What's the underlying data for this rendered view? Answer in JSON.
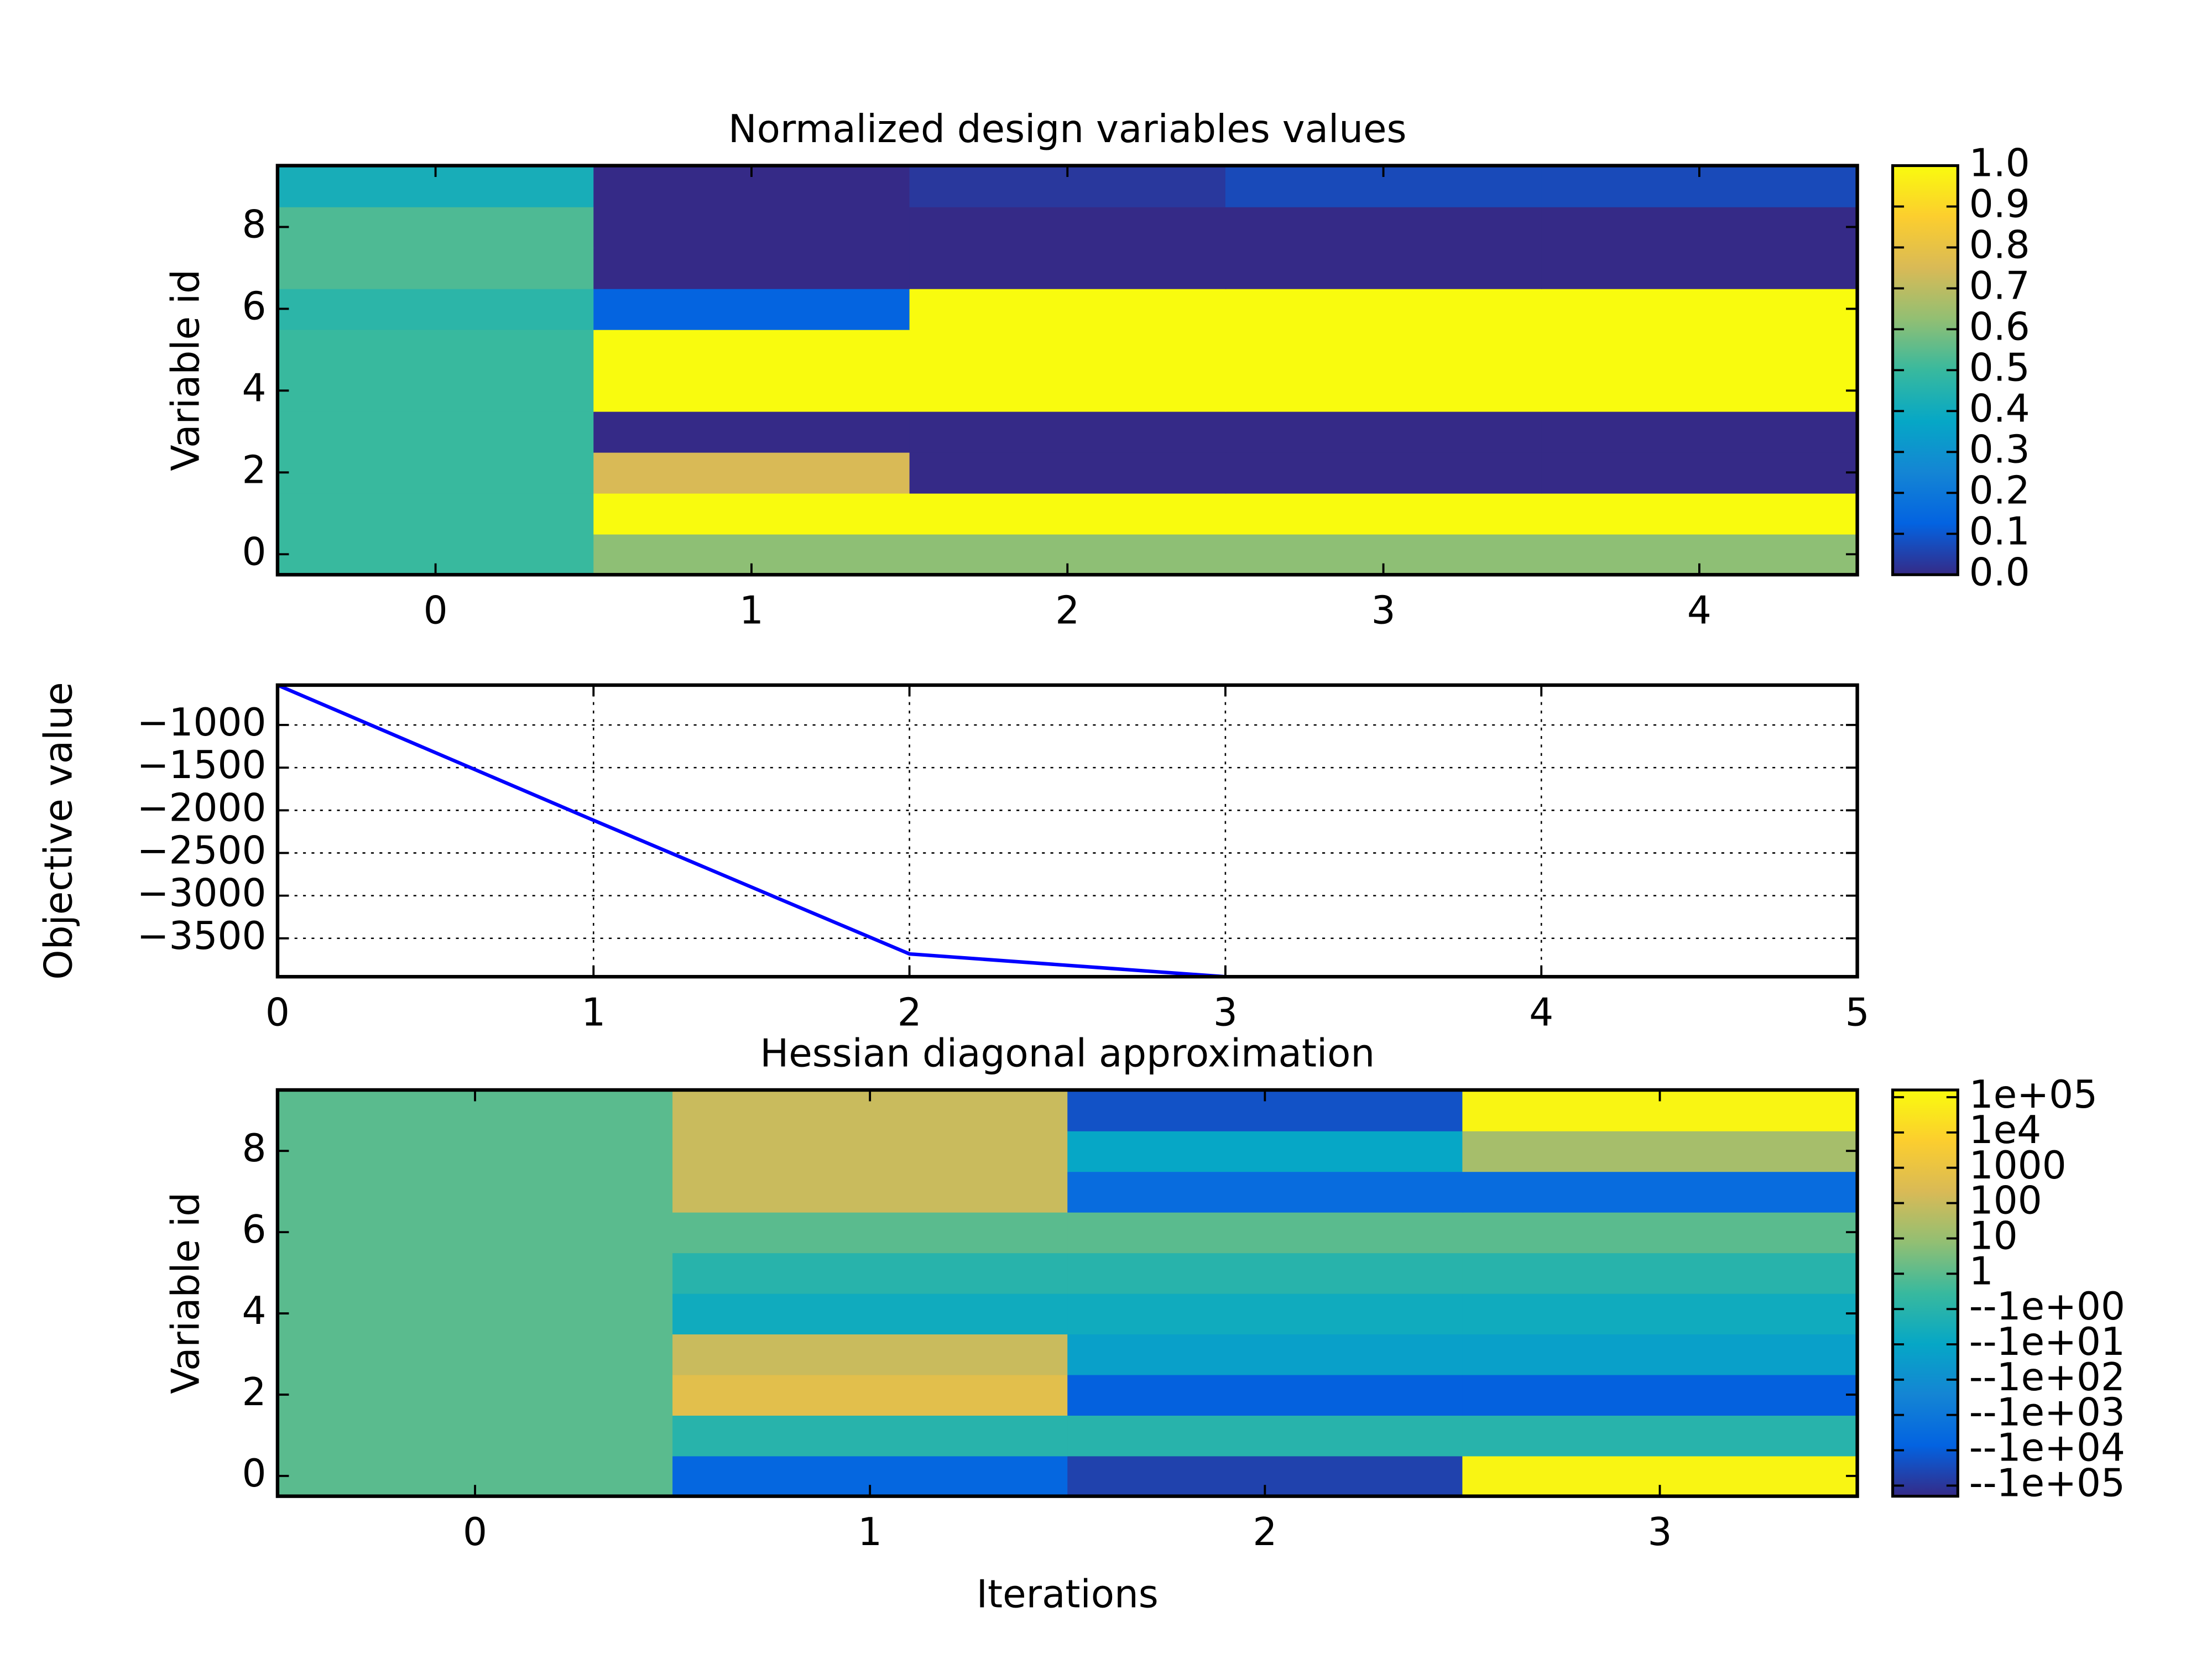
{
  "chart_data": [
    {
      "type": "heatmap",
      "title": "Normalized design variables values",
      "ylabel": "Variable id",
      "xlim": [
        -0.5,
        4.5
      ],
      "ylim": [
        -0.5,
        9.5
      ],
      "xticks": [
        0,
        1,
        2,
        3,
        4
      ],
      "yticks": [
        0,
        2,
        4,
        6,
        8
      ],
      "values": [
        [
          0.5,
          0.62,
          0.62,
          0.62,
          0.62
        ],
        [
          0.5,
          1,
          1,
          1,
          1
        ],
        [
          0.5,
          0.75,
          0,
          0,
          0
        ],
        [
          0.5,
          0,
          0,
          0,
          0
        ],
        [
          0.5,
          1,
          1,
          1,
          1
        ],
        [
          0.5,
          1,
          1,
          1,
          1
        ],
        [
          0.47,
          0.13,
          1,
          1,
          1
        ],
        [
          0.53,
          0,
          0,
          0,
          0
        ],
        [
          0.53,
          0,
          0,
          0,
          0
        ],
        [
          0.42,
          0,
          0.03,
          0.07,
          0.07
        ]
      ],
      "colormap": [
        "#352a87",
        "#0363e1",
        "#1485d4",
        "#06a7c6",
        "#38b99e",
        "#92bf73",
        "#d9ba56",
        "#fcce2e",
        "#f9fb0e"
      ],
      "colorbar": {
        "lim": [
          0,
          1
        ],
        "ticks": [
          {
            "value": 0,
            "label": "0.0"
          },
          0.1,
          0.2,
          0.3,
          0.4,
          0.5,
          0.6,
          0.7,
          0.8,
          0.9,
          {
            "value": 1,
            "label": "1.0"
          }
        ]
      }
    },
    {
      "type": "line",
      "ylabel": "Objective value",
      "x": [
        0,
        1,
        2,
        3
      ],
      "values": [
        -533,
        -2117,
        -3683,
        -3950
      ],
      "color": "#0000ff",
      "xlim": [
        0,
        5
      ],
      "ylim": [
        -3950,
        -533
      ],
      "xticks": [
        0,
        1,
        2,
        3,
        4,
        5
      ],
      "yticks": [
        {
          "value": -1000,
          "label": "−1000"
        },
        {
          "value": -1500,
          "label": "−1500"
        },
        {
          "value": -2000,
          "label": "−2000"
        },
        {
          "value": -2500,
          "label": "−2500"
        },
        {
          "value": -3000,
          "label": "−3000"
        },
        {
          "value": -3500,
          "label": "−3500"
        }
      ],
      "grid": true
    },
    {
      "type": "heatmap",
      "title": "Hessian diagonal approximation",
      "ylabel": "Variable id",
      "xlabel": "Iterations",
      "xlim": [
        -0.5,
        3.5
      ],
      "ylim": [
        -0.5,
        9.5
      ],
      "xticks": [
        0,
        1,
        2,
        3
      ],
      "yticks": [
        0,
        2,
        4,
        6,
        8
      ],
      "values": [
        [
          1,
          -5000,
          -50000,
          100000
        ],
        [
          1,
          -1,
          -1,
          -1
        ],
        [
          1,
          500,
          -8000,
          -8000
        ],
        [
          1,
          100,
          -20,
          -20
        ],
        [
          1,
          -5,
          -5,
          -5
        ],
        [
          1,
          -1,
          -1,
          -1
        ],
        [
          1,
          1,
          1,
          1
        ],
        [
          1,
          100,
          -3000,
          -3000
        ],
        [
          1,
          100,
          -10,
          20
        ],
        [
          1,
          100,
          -20000,
          100000
        ]
      ],
      "colormap": [
        "#352a87",
        "#0363e1",
        "#1485d4",
        "#06a7c6",
        "#38b99e",
        "#92bf73",
        "#d9ba56",
        "#fcce2e",
        "#f9fb0e"
      ],
      "colorbar": {
        "scale": "symlog",
        "lim": [
          -200000,
          160000
        ],
        "ticks": [
          {
            "value": 100000,
            "label": "1e+05"
          },
          {
            "value": 10000,
            "label": "1e4"
          },
          1000,
          100,
          10,
          1,
          {
            "value": -1,
            "label": "--1e+00"
          },
          {
            "value": -10,
            "label": "--1e+01"
          },
          {
            "value": -100,
            "label": "--1e+02"
          },
          {
            "value": -1000,
            "label": "--1e+03"
          },
          {
            "value": -10000,
            "label": "--1e+04"
          },
          {
            "value": -100000,
            "label": "--1e+05"
          }
        ]
      }
    }
  ]
}
